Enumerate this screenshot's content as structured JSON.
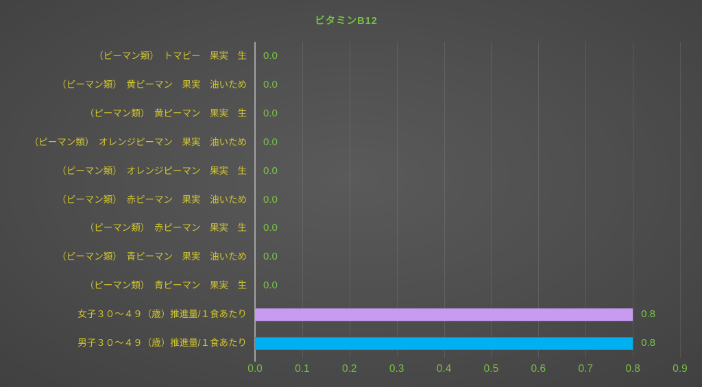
{
  "colors": {
    "title_green": "#79BF45",
    "tick_green": "#79BF45",
    "value_green": "#7CC24A",
    "category_yellow": "#CFC42F",
    "axis_line": "#A3A3A3",
    "bar_purple": "#C79BF0",
    "bar_blue": "#00B0F0"
  },
  "chart_data": {
    "type": "bar",
    "orientation": "horizontal",
    "title": "ビタミンB12",
    "categories": [
      "（ピーマン類）　トマピー　果実　生",
      "（ピーマン類）　黄ピーマン　果実　油いため",
      "（ピーマン類）　黄ピーマン　果実　生",
      "（ピーマン類）　オレンジピーマン　果実　油いため",
      "（ピーマン類）　オレンジピーマン　果実　生",
      "（ピーマン類）　赤ピーマン　果実　油いため",
      "（ピーマン類）　赤ピーマン　果実　生",
      "（ピーマン類）　青ピーマン　果実　油いため",
      "（ピーマン類）　青ピーマン　果実　生",
      "女子３０～４９（歳）推進量/１食あたり",
      "男子３０～４９（歳）推進量/１食あたり"
    ],
    "values": [
      0.0,
      0.0,
      0.0,
      0.0,
      0.0,
      0.0,
      0.0,
      0.0,
      0.0,
      0.8,
      0.8
    ],
    "value_labels": [
      "0.0",
      "0.0",
      "0.0",
      "0.0",
      "0.0",
      "0.0",
      "0.0",
      "0.0",
      "0.0",
      "0.8",
      "0.8"
    ],
    "bar_colors": [
      null,
      null,
      null,
      null,
      null,
      null,
      null,
      null,
      null,
      "#C79BF0",
      "#00B0F0"
    ],
    "xlim": [
      0,
      0.9
    ],
    "x_ticks": [
      "0.0",
      "0.1",
      "0.2",
      "0.3",
      "0.4",
      "0.5",
      "0.6",
      "0.7",
      "0.8",
      "0.9"
    ],
    "grid": true,
    "legend": "none",
    "xlabel": "",
    "ylabel": ""
  }
}
